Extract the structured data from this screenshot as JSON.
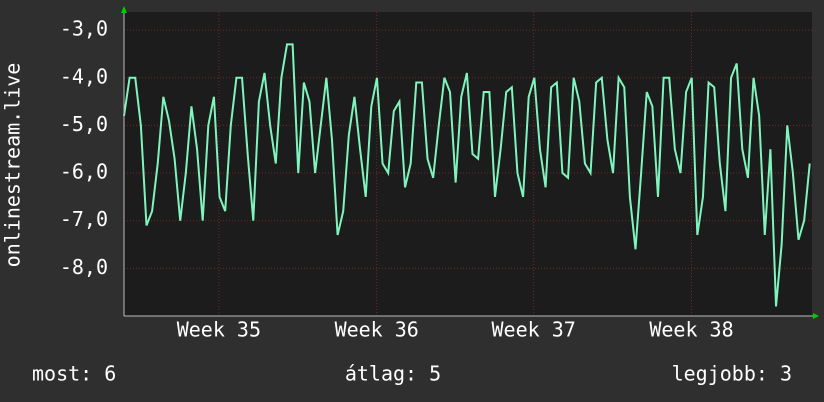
{
  "chart_data": {
    "type": "line",
    "y_label": "onlinestream.live",
    "x": [
      0,
      0.25,
      0.5,
      0.75,
      1,
      1.25,
      1.5,
      1.75,
      2,
      2.25,
      2.5,
      2.75,
      3,
      3.25,
      3.5,
      3.75,
      4,
      4.25,
      4.5,
      4.75,
      5,
      5.25,
      5.5,
      5.75,
      6,
      6.25,
      6.5,
      6.75,
      7,
      7.25,
      7.5,
      7.75,
      8,
      8.25,
      8.5,
      8.75,
      9,
      9.25,
      9.5,
      9.75,
      10,
      10.25,
      10.5,
      10.75,
      11,
      11.25,
      11.5,
      11.75,
      12,
      12.25,
      12.5,
      12.75,
      13,
      13.25,
      13.5,
      13.75,
      14,
      14.25,
      14.5,
      14.75,
      15,
      15.25,
      15.5,
      15.75,
      16,
      16.25,
      16.5,
      16.75,
      17,
      17.25,
      17.5,
      17.75,
      18,
      18.25,
      18.5,
      18.75,
      19,
      19.25,
      19.5,
      19.75,
      20,
      20.25,
      20.5,
      20.75,
      21,
      21.25,
      21.5,
      21.75,
      22,
      22.25,
      22.5,
      22.75,
      23,
      23.25,
      23.5,
      23.75,
      24,
      24.25,
      24.5,
      24.75,
      25,
      25.25,
      25.5,
      25.75,
      26,
      26.25,
      26.5,
      26.75,
      27,
      27.25,
      27.5,
      27.75,
      28,
      28.25,
      28.5,
      28.75,
      29,
      29.25,
      29.5,
      29.75,
      30,
      30.25,
      30.5
    ],
    "series": [
      {
        "color": "#7ff5bd",
        "values": [
          -4.8,
          -4.0,
          -4.0,
          -5.0,
          -7.1,
          -6.8,
          -5.8,
          -4.4,
          -4.9,
          -5.7,
          -7.0,
          -6.0,
          -4.6,
          -5.5,
          -7.0,
          -5.0,
          -4.4,
          -6.5,
          -6.8,
          -5.0,
          -4.0,
          -4.0,
          -5.6,
          -7.0,
          -4.5,
          -3.9,
          -5.0,
          -5.8,
          -4.0,
          -3.3,
          -3.3,
          -6.0,
          -4.1,
          -4.5,
          -6.0,
          -5.0,
          -4.0,
          -5.3,
          -7.3,
          -6.8,
          -5.2,
          -4.4,
          -5.5,
          -6.5,
          -4.6,
          -4.0,
          -5.8,
          -6.0,
          -4.7,
          -4.5,
          -6.3,
          -5.8,
          -4.1,
          -4.1,
          -5.7,
          -6.1,
          -5.0,
          -4.0,
          -4.3,
          -6.2,
          -4.4,
          -3.9,
          -5.6,
          -5.7,
          -4.3,
          -4.3,
          -6.5,
          -5.5,
          -4.3,
          -4.2,
          -6.0,
          -6.5,
          -4.4,
          -4.0,
          -5.5,
          -6.3,
          -4.2,
          -4.1,
          -6.0,
          -6.1,
          -4.0,
          -4.5,
          -5.8,
          -6.0,
          -4.1,
          -4.0,
          -5.3,
          -6.0,
          -4.0,
          -4.2,
          -6.5,
          -7.6,
          -6.0,
          -4.3,
          -4.6,
          -6.5,
          -4.0,
          -4.0,
          -5.5,
          -6.0,
          -4.3,
          -4.0,
          -7.3,
          -6.5,
          -4.1,
          -4.2,
          -5.8,
          -6.8,
          -4.0,
          -3.7,
          -5.5,
          -6.1,
          -4.0,
          -4.8,
          -7.3,
          -5.5,
          -8.8,
          -7.5,
          -5.0,
          -6.0,
          -7.4,
          -7.0,
          -5.8
        ]
      }
    ],
    "xlim": [
      0,
      30.6
    ],
    "xticks": [
      {
        "value": 4.22,
        "label": "Week 35"
      },
      {
        "value": 11.24,
        "label": "Week 36"
      },
      {
        "value": 18.22,
        "label": "Week 37"
      },
      {
        "value": 25.24,
        "label": "Week 38"
      }
    ],
    "ylim": [
      -9.0,
      -2.62
    ],
    "yticks": [
      {
        "value": -3,
        "label": "-3,0"
      },
      {
        "value": -4,
        "label": "-4,0"
      },
      {
        "value": -5,
        "label": "-5,0"
      },
      {
        "value": -6,
        "label": "-6,0"
      },
      {
        "value": -7,
        "label": "-7,0"
      },
      {
        "value": -8,
        "label": "-8,0"
      }
    ],
    "grid": true,
    "footer": [
      "most: 6",
      "átlag: 5",
      "legjobb: 3"
    ]
  }
}
